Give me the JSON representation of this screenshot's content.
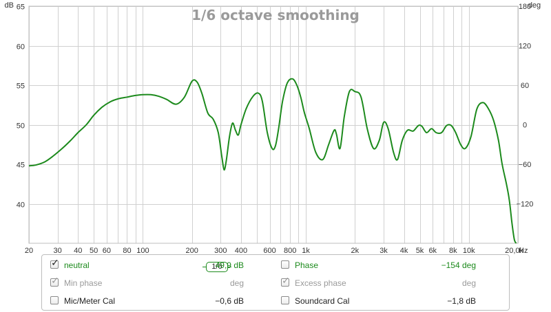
{
  "chart_data": {
    "type": "line",
    "title": "1/6 octave smoothing",
    "y_left": {
      "unit": "dB",
      "ticks": [
        "65",
        "60",
        "55",
        "50",
        "45",
        "40"
      ],
      "ylim": [
        35,
        65
      ]
    },
    "y_right": {
      "unit": "deg",
      "ticks": [
        "180",
        "120",
        "60",
        "0",
        "-60",
        "-120"
      ],
      "ylim": [
        -180,
        180
      ]
    },
    "x_axis": {
      "unit": "Hz",
      "scale": "log",
      "xlim": [
        20,
        20000
      ],
      "ticks": [
        {
          "f": 20,
          "label": "20"
        },
        {
          "f": 30,
          "label": "30"
        },
        {
          "f": 40,
          "label": "40"
        },
        {
          "f": 50,
          "label": "50"
        },
        {
          "f": 60,
          "label": "60"
        },
        {
          "f": 80,
          "label": "80"
        },
        {
          "f": 100,
          "label": "100"
        },
        {
          "f": 200,
          "label": "200"
        },
        {
          "f": 300,
          "label": "300"
        },
        {
          "f": 400,
          "label": "400"
        },
        {
          "f": 600,
          "label": "600"
        },
        {
          "f": 800,
          "label": "800"
        },
        {
          "f": 1000,
          "label": "1k"
        },
        {
          "f": 2000,
          "label": "2k"
        },
        {
          "f": 3000,
          "label": "3k"
        },
        {
          "f": 4000,
          "label": "4k"
        },
        {
          "f": 5000,
          "label": "5k"
        },
        {
          "f": 6000,
          "label": "6k"
        },
        {
          "f": 8000,
          "label": "8k"
        },
        {
          "f": 10000,
          "label": "10k"
        },
        {
          "f": 20000,
          "label": "20,0k"
        }
      ]
    },
    "grid": true,
    "series": [
      {
        "name": "neutral",
        "color": "#1c8a1c",
        "x": [
          20,
          22,
          25,
          28,
          32,
          36,
          40,
          45,
          50,
          56,
          63,
          71,
          80,
          90,
          100,
          112,
          125,
          140,
          160,
          180,
          200,
          215,
          230,
          250,
          270,
          290,
          305,
          315,
          325,
          340,
          355,
          370,
          385,
          400,
          430,
          470,
          510,
          540,
          580,
          620,
          650,
          680,
          720,
          770,
          830,
          880,
          930,
          980,
          1050,
          1150,
          1270,
          1380,
          1490,
          1540,
          1620,
          1720,
          1850,
          2000,
          2180,
          2380,
          2600,
          2820,
          3000,
          3200,
          3450,
          3650,
          3900,
          4200,
          4550,
          4900,
          5150,
          5500,
          5900,
          6300,
          6800,
          7300,
          7800,
          8300,
          8900,
          9500,
          10300,
          11200,
          12200,
          13200,
          14200,
          15200,
          16000,
          17000,
          17700,
          18400,
          19000,
          19500
        ],
        "values": [
          44.8,
          44.9,
          45.3,
          46.0,
          47.0,
          48.0,
          49.0,
          50.0,
          51.2,
          52.2,
          52.9,
          53.3,
          53.5,
          53.7,
          53.8,
          53.8,
          53.6,
          53.2,
          52.6,
          53.5,
          55.5,
          55.4,
          54.0,
          51.5,
          50.7,
          49.0,
          46.0,
          44.3,
          45.5,
          48.5,
          50.2,
          49.3,
          48.7,
          50.0,
          52.0,
          53.5,
          54.0,
          53.0,
          49.0,
          47.0,
          47.3,
          49.5,
          53.0,
          55.3,
          55.8,
          55.0,
          53.5,
          51.5,
          49.5,
          46.5,
          45.6,
          47.5,
          49.3,
          48.8,
          47.0,
          51.0,
          54.2,
          54.2,
          53.5,
          49.5,
          47.0,
          48.0,
          50.3,
          49.5,
          46.5,
          45.6,
          48.0,
          49.3,
          49.2,
          49.9,
          49.8,
          49.0,
          49.5,
          49.0,
          49.0,
          49.9,
          49.9,
          49.0,
          47.5,
          47.0,
          48.5,
          52.0,
          52.8,
          52.0,
          50.5,
          48.0,
          45.0,
          42.5,
          40.5,
          37.5,
          35.5,
          35.0
        ]
      }
    ]
  },
  "legend": {
    "rows": [
      {
        "left": {
          "label": "neutral",
          "checked": true,
          "dim": false,
          "value": "49,9 dB"
        },
        "smoothing": "1/6",
        "right": {
          "label": "Phase",
          "checked": false,
          "dim": false,
          "value": "-154 deg"
        }
      },
      {
        "left": {
          "label": "Min phase",
          "checked": true,
          "dim": true,
          "value": "deg"
        },
        "right": {
          "label": "Excess phase",
          "checked": true,
          "dim": true,
          "value": "deg"
        }
      },
      {
        "left": {
          "label": "Mic/Meter Cal",
          "checked": false,
          "dim": false,
          "value": "-0,6 dB"
        },
        "right": {
          "label": "Soundcard Cal",
          "checked": false,
          "dim": false,
          "value": "-1,8 dB"
        }
      }
    ]
  }
}
